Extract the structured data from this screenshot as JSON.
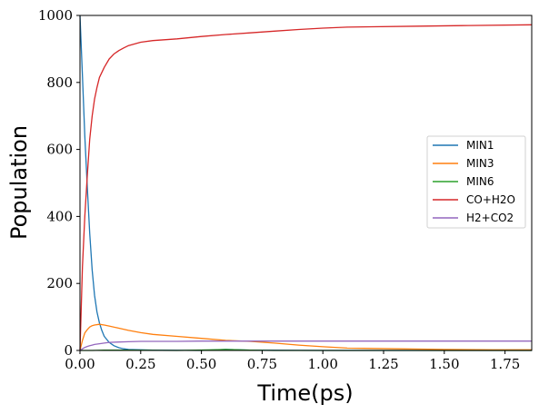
{
  "chart_data": {
    "type": "line",
    "xlabel": "Time(ps)",
    "ylabel": "Population",
    "xlim": [
      0,
      1.86
    ],
    "ylim": [
      0,
      1000
    ],
    "x_ticks": [
      "0.00",
      "0.25",
      "0.50",
      "0.75",
      "1.00",
      "1.25",
      "1.50",
      "1.75"
    ],
    "y_ticks": [
      "0",
      "200",
      "400",
      "600",
      "800",
      "1000"
    ],
    "grid": false,
    "legend_position": "center-right",
    "series": [
      {
        "name": "MIN1",
        "color": "#1f77b4",
        "x": [
          0,
          0.01,
          0.02,
          0.03,
          0.04,
          0.05,
          0.06,
          0.07,
          0.08,
          0.09,
          0.1,
          0.12,
          0.14,
          0.16,
          0.18,
          0.2,
          0.25,
          0.3,
          0.5,
          0.6,
          0.7,
          1.0,
          1.5,
          1.86
        ],
        "y": [
          1000,
          820,
          640,
          490,
          350,
          240,
          165,
          115,
          82,
          60,
          42,
          24,
          14,
          8,
          5,
          3,
          2,
          1,
          0,
          3,
          1,
          0,
          0,
          0
        ]
      },
      {
        "name": "MIN3",
        "color": "#ff7f0e",
        "x": [
          0,
          0.01,
          0.02,
          0.03,
          0.04,
          0.05,
          0.06,
          0.08,
          0.1,
          0.12,
          0.15,
          0.2,
          0.25,
          0.3,
          0.4,
          0.5,
          0.6,
          0.7,
          0.8,
          0.9,
          1.0,
          1.1,
          1.2,
          1.3,
          1.5,
          1.7,
          1.86
        ],
        "y": [
          0,
          30,
          52,
          62,
          70,
          74,
          76,
          78,
          76,
          73,
          68,
          60,
          53,
          48,
          42,
          36,
          30,
          27,
          22,
          16,
          11,
          7,
          6,
          5,
          3,
          2,
          2
        ]
      },
      {
        "name": "MIN6",
        "color": "#2ca02c",
        "x": [
          0,
          0.05,
          0.1,
          0.2,
          0.4,
          0.55,
          0.6,
          0.65,
          0.7,
          0.8,
          1.0,
          1.5,
          1.86
        ],
        "y": [
          0,
          0,
          1,
          1,
          0,
          2,
          3,
          2,
          1,
          0,
          0,
          0,
          0
        ]
      },
      {
        "name": "CO+H2O",
        "color": "#d62728",
        "x": [
          0,
          0.005,
          0.01,
          0.02,
          0.03,
          0.04,
          0.05,
          0.06,
          0.07,
          0.08,
          0.1,
          0.12,
          0.14,
          0.16,
          0.18,
          0.2,
          0.25,
          0.3,
          0.4,
          0.5,
          0.6,
          0.7,
          0.8,
          0.9,
          1.0,
          1.1,
          1.2,
          1.4,
          1.6,
          1.86
        ],
        "y": [
          0,
          120,
          250,
          400,
          520,
          630,
          700,
          750,
          785,
          815,
          845,
          870,
          885,
          895,
          903,
          910,
          920,
          925,
          930,
          937,
          943,
          948,
          953,
          958,
          962,
          965,
          966,
          968,
          970,
          972
        ]
      },
      {
        "name": "H2+CO2",
        "color": "#9467bd",
        "x": [
          0,
          0.01,
          0.02,
          0.03,
          0.04,
          0.05,
          0.06,
          0.08,
          0.1,
          0.12,
          0.15,
          0.2,
          0.25,
          0.3,
          0.4,
          0.5,
          0.6,
          0.8,
          1.0,
          1.5,
          1.86
        ],
        "y": [
          0,
          5,
          9,
          12,
          14,
          16,
          18,
          20,
          22,
          24,
          25,
          26,
          27,
          27,
          27,
          28,
          28,
          28,
          28,
          28,
          28
        ]
      }
    ]
  }
}
